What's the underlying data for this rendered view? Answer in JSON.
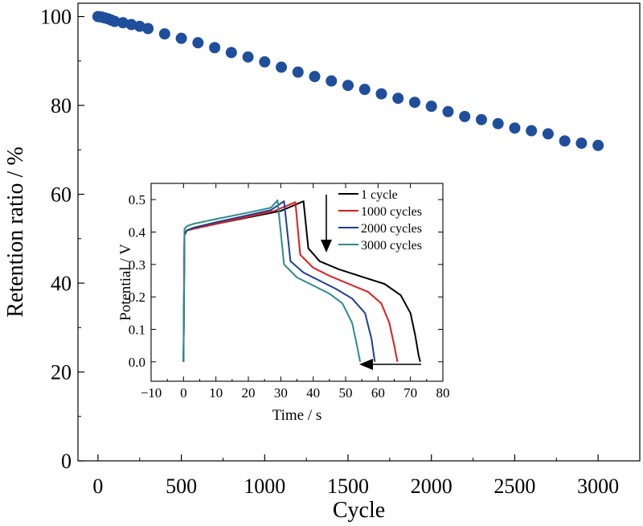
{
  "chart_data": [
    {
      "type": "scatter",
      "xlabel": "Cycle",
      "ylabel": "Retention ratio / %",
      "xlim": [
        -120,
        3250
      ],
      "ylim": [
        0,
        103
      ],
      "xticks": [
        0,
        500,
        1000,
        1500,
        2000,
        2500,
        3000
      ],
      "yticks": [
        0,
        20,
        40,
        60,
        80,
        100
      ],
      "marker_color": "#1f4e9c",
      "series": [
        {
          "x": [
            0,
            20,
            40,
            60,
            80,
            100,
            150,
            200,
            250,
            300,
            400,
            500,
            600,
            700,
            800,
            900,
            1000,
            1100,
            1200,
            1300,
            1400,
            1500,
            1600,
            1700,
            1800,
            1900,
            2000,
            2100,
            2200,
            2300,
            2400,
            2500,
            2600,
            2700,
            2800,
            2900,
            3000
          ],
          "y": [
            100.0,
            99.9,
            99.7,
            99.5,
            99.2,
            98.9,
            98.6,
            98.2,
            97.8,
            97.3,
            96.1,
            95.1,
            94.1,
            93.0,
            91.9,
            90.9,
            89.8,
            88.6,
            87.5,
            86.5,
            85.5,
            84.5,
            83.6,
            82.6,
            81.6,
            80.7,
            79.8,
            78.6,
            77.5,
            76.8,
            75.9,
            74.9,
            74.3,
            73.6,
            72.0,
            71.5,
            71.0
          ]
        }
      ]
    },
    {
      "type": "line",
      "inset": true,
      "xlabel": "Time / s",
      "ylabel": "Potential / V",
      "xlim": [
        -10,
        80
      ],
      "ylim": [
        -0.06,
        0.55
      ],
      "xticks": [
        -10,
        0,
        10,
        20,
        30,
        40,
        50,
        60,
        70,
        80
      ],
      "yticks": [
        0.0,
        0.1,
        0.2,
        0.3,
        0.4,
        0.5
      ],
      "ytick_labels": [
        "0.0",
        "0.1",
        "0.2",
        "0.3",
        "0.4",
        "0.5"
      ],
      "legend_position": "top-right",
      "series": [
        {
          "name": "1 cycle",
          "color": "#000000",
          "x": [
            0,
            0.3,
            1,
            3,
            10,
            20,
            30,
            37,
            37,
            38.5,
            42,
            48,
            55,
            62,
            67,
            70,
            71.5,
            72.5,
            73
          ],
          "y": [
            0.0,
            0.39,
            0.405,
            0.41,
            0.425,
            0.445,
            0.465,
            0.495,
            0.495,
            0.35,
            0.31,
            0.285,
            0.262,
            0.24,
            0.205,
            0.15,
            0.08,
            0.02,
            0.0
          ]
        },
        {
          "name": "1000 cycles",
          "color": "#dd1c1c",
          "x": [
            0,
            0.3,
            1,
            3,
            10,
            20,
            28,
            34.5,
            34.5,
            36,
            40,
            45,
            51,
            57,
            61,
            63.5,
            65,
            66
          ],
          "y": [
            0.0,
            0.39,
            0.405,
            0.41,
            0.425,
            0.447,
            0.465,
            0.492,
            0.492,
            0.33,
            0.29,
            0.265,
            0.24,
            0.215,
            0.18,
            0.12,
            0.05,
            0.0
          ]
        },
        {
          "name": "2000 cycles",
          "color": "#1c3f94",
          "x": [
            0,
            0.3,
            1,
            3,
            10,
            20,
            27,
            31,
            31,
            33,
            37,
            42,
            47,
            52,
            56,
            58,
            59
          ],
          "y": [
            0.0,
            0.39,
            0.405,
            0.413,
            0.43,
            0.452,
            0.468,
            0.495,
            0.495,
            0.31,
            0.275,
            0.25,
            0.225,
            0.195,
            0.15,
            0.07,
            0.0
          ]
        },
        {
          "name": "3000 cycles",
          "color": "#2e8a8a",
          "x": [
            0,
            0.3,
            1,
            3,
            10,
            20,
            27,
            29,
            29,
            31,
            35,
            40,
            45,
            49,
            52,
            53.5,
            54.5
          ],
          "y": [
            0.0,
            0.41,
            0.418,
            0.425,
            0.44,
            0.46,
            0.475,
            0.498,
            0.498,
            0.3,
            0.26,
            0.235,
            0.21,
            0.18,
            0.12,
            0.05,
            0.0
          ]
        }
      ]
    }
  ]
}
